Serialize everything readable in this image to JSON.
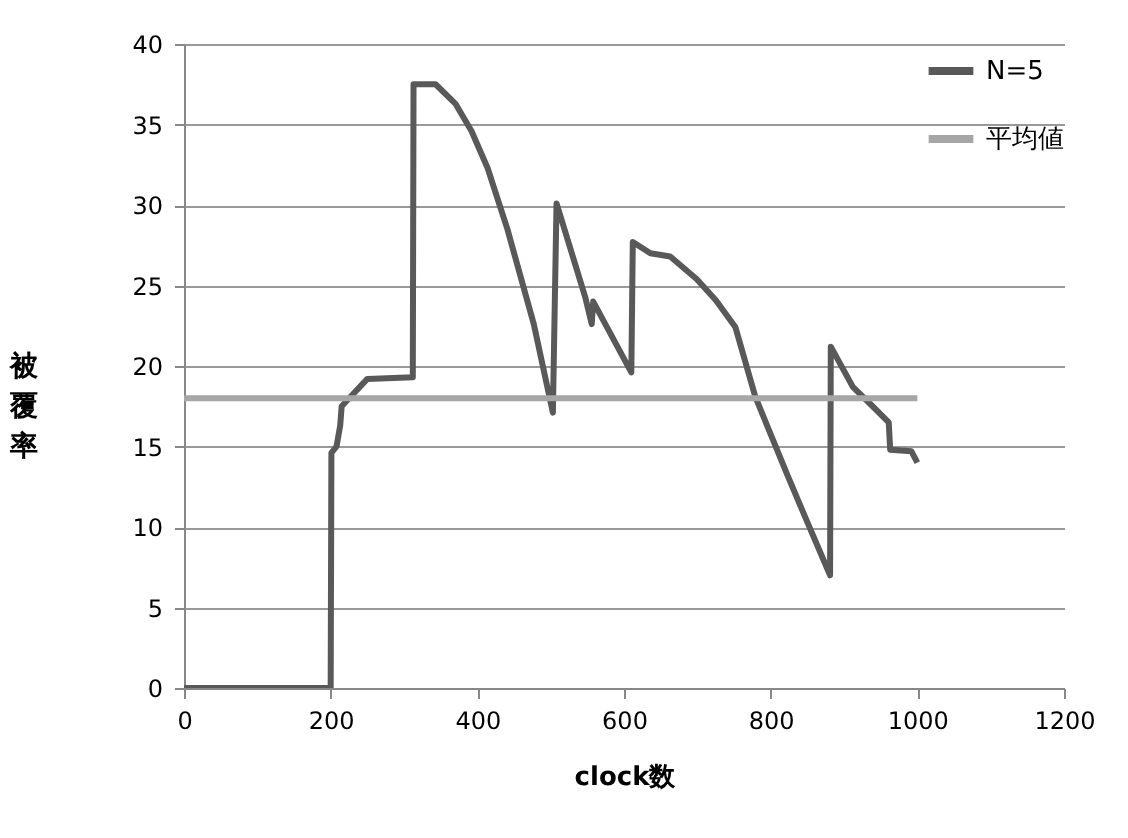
{
  "chart_data": {
    "type": "line",
    "xlabel": "clock数",
    "ylabel": "被覆率",
    "xlim": [
      0,
      1200
    ],
    "xticks": [
      0,
      200,
      400,
      600,
      800,
      1000,
      1200
    ],
    "ylim": [
      0,
      40
    ],
    "yticks": [
      0,
      5,
      10,
      15,
      20,
      25,
      30,
      35,
      40
    ],
    "grid": "y",
    "legend": "top right",
    "line_style": "solid",
    "marker": "none",
    "series": [
      {
        "name": "N=5",
        "color": "#595959",
        "x": [
          0,
          200,
          201,
          208,
          213,
          215,
          250,
          312,
          313,
          343,
          370,
          392,
          414,
          441,
          477,
          503,
          508,
          547,
          556,
          558,
          610,
          612,
          636,
          663,
          699,
          725,
          752,
          779,
          823,
          850,
          881,
          882,
          912,
          939,
          961,
          963,
          992,
          1000
        ],
        "values": [
          0,
          0,
          14.6,
          15,
          16.3,
          17.5,
          19.2,
          19.3,
          37.5,
          37.5,
          36.3,
          34.6,
          32.3,
          28.5,
          22.6,
          17.1,
          30.1,
          24.3,
          22.6,
          24,
          19.6,
          27.7,
          27,
          26.8,
          25.4,
          24.1,
          22.4,
          18.1,
          13.2,
          10.3,
          7,
          21.2,
          18.7,
          17.5,
          16.5,
          14.8,
          14.7,
          14
        ]
      },
      {
        "name": "平均値",
        "color": "#a6a6a6",
        "x": [
          0,
          1000
        ],
        "values": [
          18,
          18
        ]
      }
    ]
  }
}
